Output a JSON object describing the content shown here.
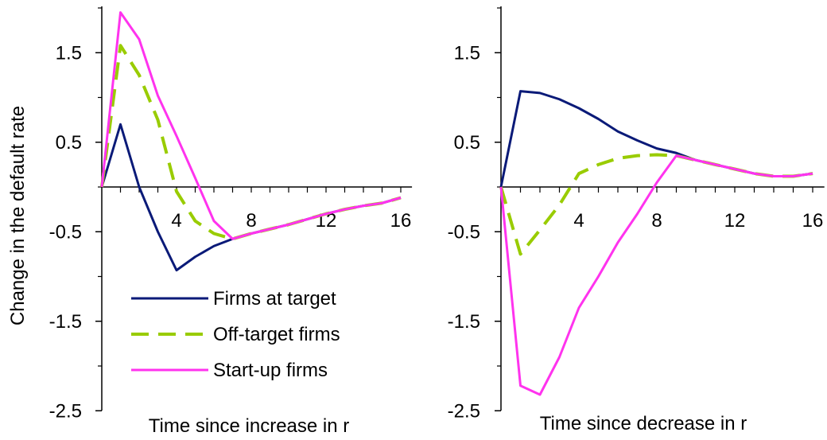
{
  "colors": {
    "firms_at_target": "#0a1a78",
    "off_target": "#99cc00",
    "startup": "#ff33ee",
    "axis": "#000000"
  },
  "legend": {
    "items": [
      "Firms at target",
      "Off-target firms",
      "Start-up firms"
    ]
  },
  "chart_data": [
    {
      "type": "line",
      "xlabel": "Time since increase in r",
      "ylabel": "Change in the default rate",
      "xlim": [
        0,
        17
      ],
      "ylim": [
        -2.5,
        2.0
      ],
      "xticks": [
        "4",
        "8",
        "12",
        "16"
      ],
      "yticks": [
        "1.5",
        "0.5",
        "-0.5",
        "-1.5",
        "-2.5"
      ],
      "x": [
        0,
        1,
        2,
        3,
        4,
        5,
        6,
        7,
        8,
        9,
        10,
        11,
        12,
        13,
        14,
        15,
        16
      ],
      "series": [
        {
          "name": "Firms at target",
          "values": [
            0,
            0.7,
            0,
            -0.5,
            -0.93,
            -0.78,
            -0.66,
            -0.58,
            -0.52,
            -0.47,
            -0.42,
            -0.36,
            -0.3,
            -0.25,
            -0.21,
            -0.18,
            -0.12
          ]
        },
        {
          "name": "Off-target firms",
          "values": [
            0,
            1.58,
            1.25,
            0.75,
            -0.05,
            -0.38,
            -0.52,
            -0.58,
            -0.52,
            -0.47,
            -0.42,
            -0.36,
            -0.3,
            -0.25,
            -0.21,
            -0.18,
            -0.12
          ]
        },
        {
          "name": "Start-up firms",
          "values": [
            0,
            1.95,
            1.65,
            1.02,
            0.57,
            0.1,
            -0.38,
            -0.58,
            -0.52,
            -0.47,
            -0.42,
            -0.36,
            -0.3,
            -0.25,
            -0.21,
            -0.18,
            -0.12
          ]
        }
      ]
    },
    {
      "type": "line",
      "xlabel": "Time since decrease in r",
      "ylabel": "",
      "xlim": [
        0,
        17
      ],
      "ylim": [
        -2.5,
        2.0
      ],
      "xticks": [
        "4",
        "8",
        "12",
        "16"
      ],
      "yticks": [
        "1.5",
        "0.5",
        "-0.5",
        "-1.5",
        "-2.5"
      ],
      "x": [
        0,
        1,
        2,
        3,
        4,
        5,
        6,
        7,
        8,
        9,
        10,
        11,
        12,
        13,
        14,
        15,
        16
      ],
      "series": [
        {
          "name": "Firms at target",
          "values": [
            0,
            1.07,
            1.05,
            0.98,
            0.88,
            0.76,
            0.62,
            0.52,
            0.43,
            0.38,
            0.3,
            0.25,
            0.2,
            0.15,
            0.12,
            0.12,
            0.15
          ]
        },
        {
          "name": "Off-target firms",
          "values": [
            0,
            -0.75,
            -0.48,
            -0.2,
            0.15,
            0.25,
            0.32,
            0.35,
            0.36,
            0.35,
            0.3,
            0.25,
            0.2,
            0.15,
            0.12,
            0.12,
            0.15
          ]
        },
        {
          "name": "Start-up firms",
          "values": [
            0,
            -2.22,
            -2.32,
            -1.9,
            -1.35,
            -1.0,
            -0.62,
            -0.3,
            0.05,
            0.35,
            0.3,
            0.25,
            0.2,
            0.15,
            0.12,
            0.12,
            0.15
          ]
        }
      ]
    }
  ]
}
